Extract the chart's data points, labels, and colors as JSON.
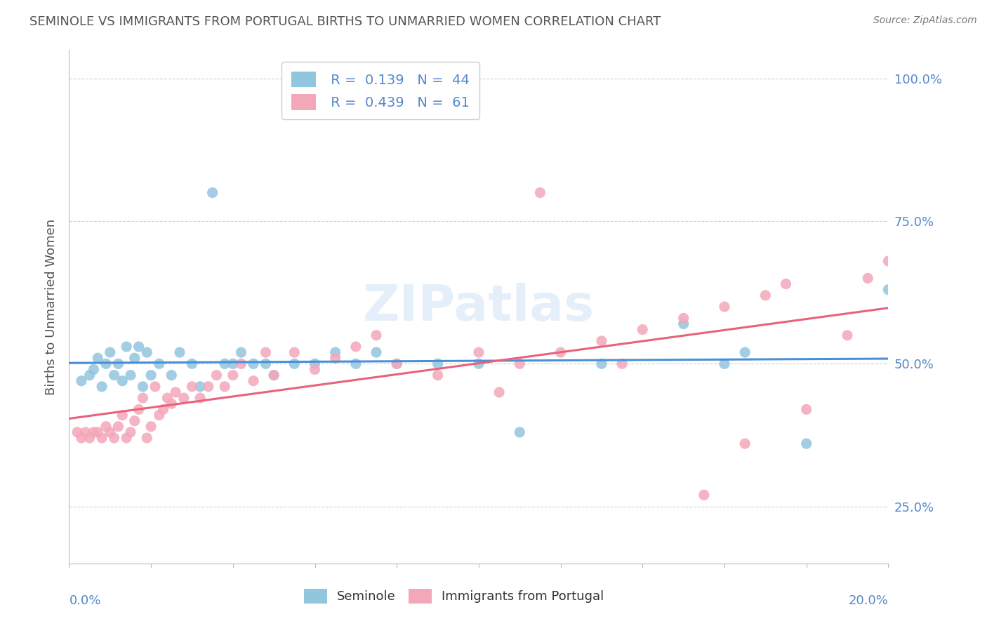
{
  "title": "SEMINOLE VS IMMIGRANTS FROM PORTUGAL BIRTHS TO UNMARRIED WOMEN CORRELATION CHART",
  "source": "Source: ZipAtlas.com",
  "ylabel": "Births to Unmarried Women",
  "seminole_R": "0.139",
  "seminole_N": "44",
  "portugal_R": "0.439",
  "portugal_N": "61",
  "seminole_color": "#92C5DE",
  "portugal_color": "#F4A7B9",
  "seminole_line_color": "#4A90D9",
  "portugal_line_color": "#E8627A",
  "background_color": "#FFFFFF",
  "grid_color": "#CCCCCC",
  "title_color": "#555555",
  "axis_label_color": "#5588CC",
  "watermark": "ZIPatlas",
  "seminole_x": [
    0.003,
    0.005,
    0.006,
    0.007,
    0.008,
    0.009,
    0.01,
    0.011,
    0.012,
    0.013,
    0.014,
    0.015,
    0.016,
    0.017,
    0.018,
    0.019,
    0.02,
    0.022,
    0.025,
    0.027,
    0.03,
    0.032,
    0.035,
    0.038,
    0.04,
    0.042,
    0.045,
    0.048,
    0.05,
    0.055,
    0.06,
    0.065,
    0.07,
    0.075,
    0.08,
    0.09,
    0.1,
    0.11,
    0.13,
    0.15,
    0.16,
    0.165,
    0.18,
    0.2
  ],
  "seminole_y": [
    0.47,
    0.48,
    0.49,
    0.51,
    0.46,
    0.5,
    0.52,
    0.48,
    0.5,
    0.47,
    0.53,
    0.48,
    0.51,
    0.53,
    0.46,
    0.52,
    0.48,
    0.5,
    0.48,
    0.52,
    0.5,
    0.46,
    0.8,
    0.5,
    0.5,
    0.52,
    0.5,
    0.5,
    0.48,
    0.5,
    0.5,
    0.52,
    0.5,
    0.52,
    0.5,
    0.5,
    0.5,
    0.38,
    0.5,
    0.57,
    0.5,
    0.52,
    0.36,
    0.63
  ],
  "portugal_x": [
    0.002,
    0.003,
    0.004,
    0.005,
    0.006,
    0.007,
    0.008,
    0.009,
    0.01,
    0.011,
    0.012,
    0.013,
    0.014,
    0.015,
    0.016,
    0.017,
    0.018,
    0.019,
    0.02,
    0.021,
    0.022,
    0.023,
    0.024,
    0.025,
    0.026,
    0.028,
    0.03,
    0.032,
    0.034,
    0.036,
    0.038,
    0.04,
    0.042,
    0.045,
    0.048,
    0.05,
    0.055,
    0.06,
    0.065,
    0.07,
    0.075,
    0.08,
    0.09,
    0.1,
    0.11,
    0.12,
    0.13,
    0.14,
    0.15,
    0.16,
    0.17,
    0.175,
    0.18,
    0.19,
    0.195,
    0.2,
    0.165,
    0.155,
    0.135,
    0.115,
    0.105
  ],
  "portugal_y": [
    0.38,
    0.37,
    0.38,
    0.37,
    0.38,
    0.38,
    0.37,
    0.39,
    0.38,
    0.37,
    0.39,
    0.41,
    0.37,
    0.38,
    0.4,
    0.42,
    0.44,
    0.37,
    0.39,
    0.46,
    0.41,
    0.42,
    0.44,
    0.43,
    0.45,
    0.44,
    0.46,
    0.44,
    0.46,
    0.48,
    0.46,
    0.48,
    0.5,
    0.47,
    0.52,
    0.48,
    0.52,
    0.49,
    0.51,
    0.53,
    0.55,
    0.5,
    0.48,
    0.52,
    0.5,
    0.52,
    0.54,
    0.56,
    0.58,
    0.6,
    0.62,
    0.64,
    0.42,
    0.55,
    0.65,
    0.68,
    0.36,
    0.27,
    0.5,
    0.8,
    0.45
  ],
  "x_min": 0.0,
  "x_max": 0.2,
  "y_min": 0.15,
  "y_max": 1.05,
  "yticks": [
    0.25,
    0.5,
    0.75,
    1.0
  ],
  "ytick_labels": [
    "25.0%",
    "50.0%",
    "75.0%",
    "100.0%"
  ]
}
